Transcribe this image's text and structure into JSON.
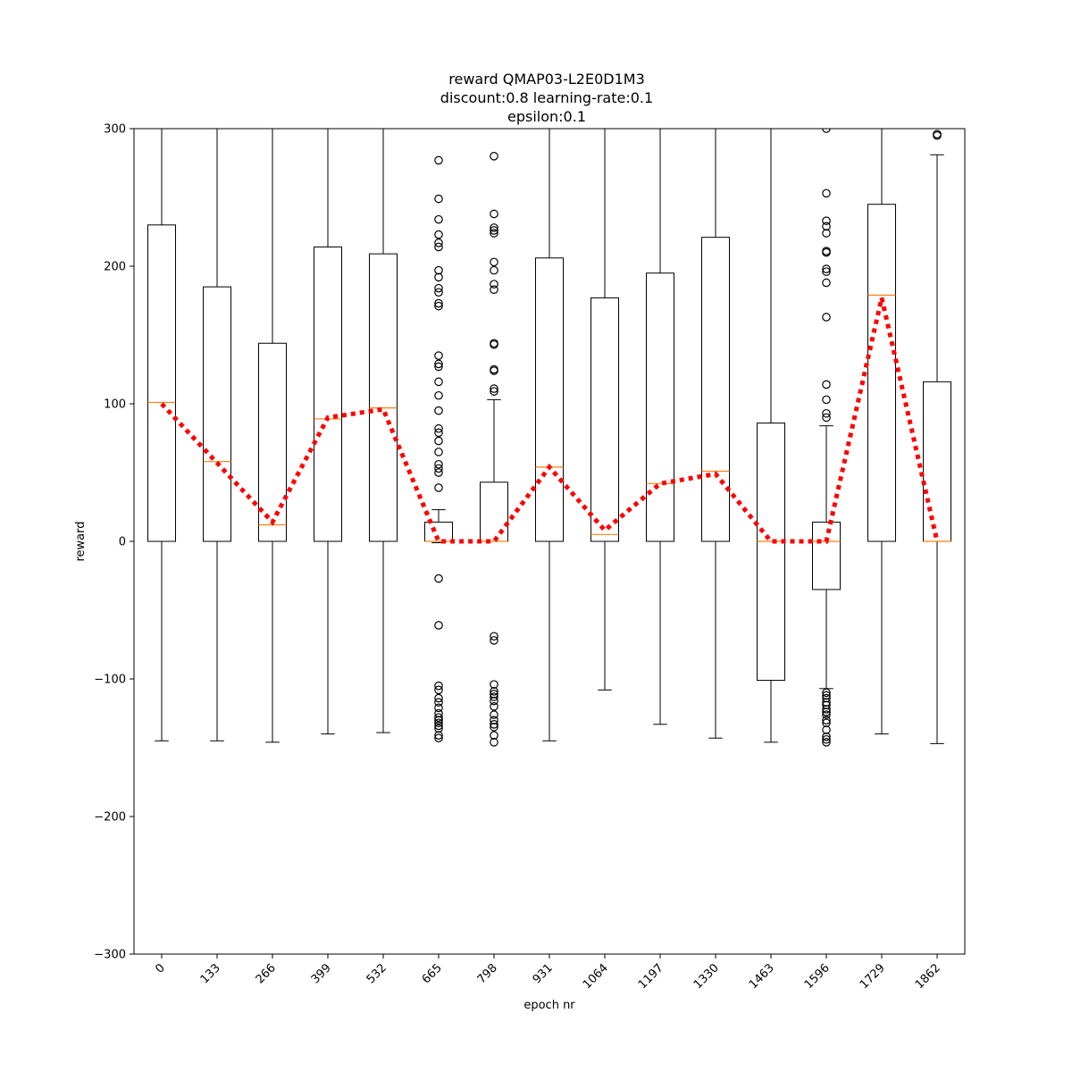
{
  "chart_data": {
    "type": "box",
    "title_lines": [
      "reward QMAP03-L2E0D1M3",
      "discount:0.8 learning-rate:0.1",
      "epsilon:0.1"
    ],
    "xlabel": "epoch nr",
    "ylabel": "reward",
    "ylim": [
      -300,
      300
    ],
    "yticks": [
      -300,
      -200,
      -100,
      0,
      100,
      200,
      300
    ],
    "ytick_labels": [
      "−300",
      "−200",
      "−100",
      "0",
      "100",
      "200",
      "300"
    ],
    "categories": [
      "0",
      "133",
      "266",
      "399",
      "532",
      "665",
      "798",
      "931",
      "1064",
      "1197",
      "1330",
      "1463",
      "1596",
      "1729",
      "1862"
    ],
    "boxes": [
      {
        "whislo": -145,
        "q1": 0,
        "median": 101,
        "q3": 230,
        "whishi": 300,
        "fliers": []
      },
      {
        "whislo": -145,
        "q1": 0,
        "median": 58,
        "q3": 185,
        "whishi": 300,
        "fliers": []
      },
      {
        "whislo": -146,
        "q1": 0,
        "median": 12,
        "q3": 144,
        "whishi": 300,
        "fliers": []
      },
      {
        "whislo": -140,
        "q1": 0,
        "median": 89,
        "q3": 214,
        "whishi": 300,
        "fliers": []
      },
      {
        "whislo": -139,
        "q1": 0,
        "median": 97,
        "q3": 209,
        "whishi": 300,
        "fliers": []
      },
      {
        "whislo": -1,
        "q1": 0,
        "median": 0,
        "q3": 14,
        "whishi": 23,
        "fliers": [
          277,
          249,
          234,
          223,
          217,
          214,
          197,
          192,
          184,
          181,
          173,
          171,
          135,
          129,
          127,
          116,
          106,
          95,
          82,
          79,
          73,
          65,
          56,
          53,
          50,
          39,
          -27,
          -61,
          -105,
          -108,
          -114,
          -117,
          -121,
          -125,
          -128,
          -130,
          -132,
          -134,
          -136,
          -141,
          -143
        ]
      },
      {
        "whislo": 0,
        "q1": 0,
        "median": 0,
        "q3": 43,
        "whishi": 103,
        "fliers": [
          280,
          238,
          228,
          226,
          224,
          203,
          197,
          187,
          183,
          144,
          143,
          125,
          124,
          111,
          109,
          -69,
          -72,
          -104,
          -109,
          -111,
          -113,
          -116,
          -120,
          -126,
          -130,
          -133,
          -135,
          -141,
          -146
        ]
      },
      {
        "whislo": -145,
        "q1": 0,
        "median": 54,
        "q3": 206,
        "whishi": 300,
        "fliers": []
      },
      {
        "whislo": -108,
        "q1": 0,
        "median": 5,
        "q3": 177,
        "whishi": 300,
        "fliers": []
      },
      {
        "whislo": -133,
        "q1": 0,
        "median": 42,
        "q3": 195,
        "whishi": 300,
        "fliers": []
      },
      {
        "whislo": -143,
        "q1": 0,
        "median": 51,
        "q3": 221,
        "whishi": 300,
        "fliers": []
      },
      {
        "whislo": -146,
        "q1": -101,
        "median": 0,
        "q3": 86,
        "whishi": 300,
        "fliers": []
      },
      {
        "whislo": -107,
        "q1": -35,
        "median": 0,
        "q3": 14,
        "whishi": 84,
        "fliers": [
          300,
          253,
          233,
          229,
          224,
          211,
          210,
          198,
          196,
          188,
          163,
          114,
          103,
          93,
          90,
          -110,
          -112,
          -114,
          -117,
          -119,
          -122,
          -124,
          -126,
          -130,
          -132,
          -137,
          -142,
          -144,
          -146
        ]
      },
      {
        "whislo": -140,
        "q1": 0,
        "median": 179,
        "q3": 245,
        "whishi": 300,
        "fliers": []
      },
      {
        "whislo": -147,
        "q1": 0,
        "median": 0,
        "q3": 116,
        "whishi": 281,
        "fliers": [
          295,
          296
        ]
      }
    ],
    "mean_line": {
      "values": [
        100,
        57,
        14,
        90,
        96,
        0,
        0,
        54,
        8,
        42,
        49,
        0,
        0,
        177,
        0
      ],
      "color": "#ff0000",
      "style": "dotted"
    },
    "box_color": "#000000",
    "median_color": "#ff7f0e",
    "flier_marker": "circle",
    "grid": false
  }
}
